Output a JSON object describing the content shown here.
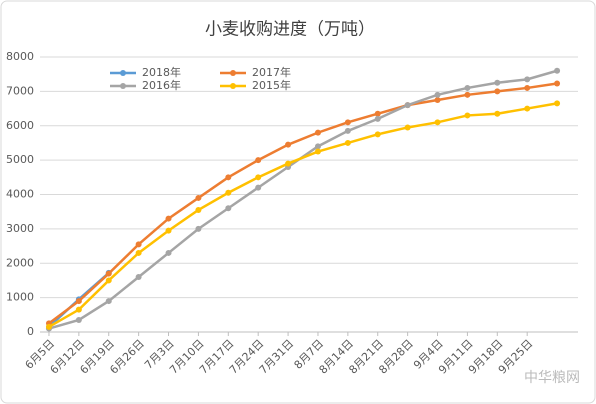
{
  "chart_data": {
    "type": "line",
    "title": "小麦收购进度（万吨）",
    "categories": [
      "6月5日",
      "6月12日",
      "6月19日",
      "6月26日",
      "7月3日",
      "7月10日",
      "7月17日",
      "7月24日",
      "7月31日",
      "8月7日",
      "8月14日",
      "8月21日",
      "8月28日",
      "9月4日",
      "9月11日",
      "9月18日",
      "9月25日",
      null
    ],
    "series": [
      {
        "name": "2018年",
        "color": "#5b9bd5",
        "values": [
          150,
          950,
          1720,
          null,
          null,
          null,
          null,
          null,
          null,
          null,
          null,
          null,
          null,
          null,
          null,
          null,
          null,
          null
        ]
      },
      {
        "name": "2017年",
        "color": "#ed7d31",
        "values": [
          250,
          900,
          1700,
          2550,
          3300,
          3900,
          4500,
          5000,
          5450,
          5800,
          6100,
          6350,
          6600,
          6750,
          6900,
          7000,
          7100,
          7230
        ]
      },
      {
        "name": "2016年",
        "color": "#a5a5a5",
        "values": [
          100,
          350,
          900,
          1600,
          2300,
          3000,
          3600,
          4200,
          4800,
          5400,
          5850,
          6200,
          6600,
          6900,
          7100,
          7250,
          7350,
          7600
        ]
      },
      {
        "name": "2015年",
        "color": "#ffc000",
        "values": [
          150,
          650,
          1500,
          2300,
          2950,
          3550,
          4050,
          4500,
          4900,
          5250,
          5500,
          5750,
          5950,
          6100,
          6300,
          6350,
          6500,
          6650
        ]
      }
    ],
    "ylim": [
      0,
      8000
    ],
    "yticks": [
      0,
      1000,
      2000,
      3000,
      4000,
      5000,
      6000,
      7000,
      8000
    ],
    "grid": true,
    "legend": "top",
    "watermark": "中华粮网"
  }
}
